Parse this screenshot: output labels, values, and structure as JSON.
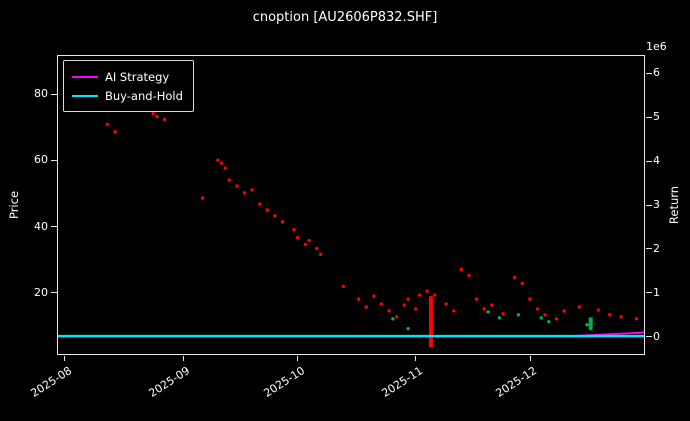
{
  "colors": {
    "background": "#000000",
    "text": "#ffffff",
    "spine": "#e8e8e8",
    "ai_strategy": "#ff00ff",
    "buy_and_hold": "#00e5ff",
    "down_days": "#ff0000",
    "up_days": "#00b050"
  },
  "chart_data": {
    "type": "scatter",
    "title": "cnoption [AU2606P832.SHF]",
    "ylabel_left": "Price",
    "ylabel_right": "Return",
    "grid": false,
    "legend_position": "upper-left",
    "x_domain": [
      "2025-07-30",
      "2025-12-31"
    ],
    "price_axis": {
      "lim": [
        1.2,
        91.8
      ],
      "ticks": [
        20,
        40,
        60,
        80
      ]
    },
    "return_axis": {
      "lim_millions": [
        -0.41,
        6.41
      ],
      "ticks": [
        0,
        1,
        2,
        3,
        4,
        5,
        6
      ],
      "offset_text": "1e6"
    },
    "x_ticks": [
      {
        "date": "2025-08-01",
        "label": "2025-08"
      },
      {
        "date": "2025-09-01",
        "label": "2025-09"
      },
      {
        "date": "2025-10-01",
        "label": "2025-10"
      },
      {
        "date": "2025-11-01",
        "label": "2025-11"
      },
      {
        "date": "2025-12-01",
        "label": "2025-12"
      }
    ],
    "bars": [
      {
        "date": "2025-11-05",
        "from": 3.2,
        "to": 18.8,
        "color": "#ff0000"
      },
      {
        "date": "2025-12-17",
        "from": 8.7,
        "to": 12.3,
        "color": "#00b050"
      }
    ],
    "series": [
      {
        "name": "AI Strategy",
        "type": "line",
        "axis": "return",
        "color": "#ff00ff",
        "points": [
          [
            "2025-07-30",
            0.0
          ],
          [
            "2025-12-12",
            0.0
          ],
          [
            "2025-12-31",
            0.08
          ]
        ]
      },
      {
        "name": "Buy-and-Hold",
        "type": "line",
        "axis": "return",
        "color": "#00e5ff",
        "points": [
          [
            "2025-07-30",
            0.0
          ],
          [
            "2025-12-31",
            0.0
          ]
        ]
      },
      {
        "name": "price-down-days",
        "type": "scatter",
        "axis": "price",
        "color": "#ff0000",
        "points": [
          [
            "2025-08-12",
            71.0
          ],
          [
            "2025-08-14",
            68.8
          ],
          [
            "2025-08-24",
            74.3
          ],
          [
            "2025-08-25",
            73.4
          ],
          [
            "2025-08-27",
            72.5
          ],
          [
            "2025-09-06",
            48.6
          ],
          [
            "2025-09-10",
            60.1
          ],
          [
            "2025-09-11",
            59.2
          ],
          [
            "2025-09-12",
            57.7
          ],
          [
            "2025-09-13",
            54.1
          ],
          [
            "2025-09-15",
            52.3
          ],
          [
            "2025-09-17",
            50.2
          ],
          [
            "2025-09-19",
            51.1
          ],
          [
            "2025-09-21",
            46.8
          ],
          [
            "2025-09-23",
            45.0
          ],
          [
            "2025-09-25",
            43.2
          ],
          [
            "2025-09-27",
            41.4
          ],
          [
            "2025-09-30",
            39.0
          ],
          [
            "2025-10-01",
            36.6
          ],
          [
            "2025-10-03",
            34.5
          ],
          [
            "2025-10-04",
            35.7
          ],
          [
            "2025-10-06",
            33.3
          ],
          [
            "2025-10-07",
            31.5
          ],
          [
            "2025-10-13",
            21.8
          ],
          [
            "2025-10-17",
            17.9
          ],
          [
            "2025-10-19",
            15.5
          ],
          [
            "2025-10-21",
            18.8
          ],
          [
            "2025-10-23",
            16.4
          ],
          [
            "2025-10-25",
            14.3
          ],
          [
            "2025-10-27",
            12.5
          ],
          [
            "2025-10-29",
            16.1
          ],
          [
            "2025-10-30",
            17.9
          ],
          [
            "2025-11-01",
            14.9
          ],
          [
            "2025-11-02",
            19.1
          ],
          [
            "2025-11-04",
            20.3
          ],
          [
            "2025-11-06",
            19.1
          ],
          [
            "2025-11-09",
            16.4
          ],
          [
            "2025-11-11",
            14.3
          ],
          [
            "2025-11-13",
            26.9
          ],
          [
            "2025-11-15",
            25.1
          ],
          [
            "2025-11-17",
            17.9
          ],
          [
            "2025-11-19",
            14.9
          ],
          [
            "2025-11-21",
            16.1
          ],
          [
            "2025-11-24",
            13.4
          ],
          [
            "2025-11-27",
            24.5
          ],
          [
            "2025-11-29",
            22.7
          ],
          [
            "2025-12-01",
            17.9
          ],
          [
            "2025-12-03",
            14.9
          ],
          [
            "2025-12-05",
            13.1
          ],
          [
            "2025-12-08",
            11.9
          ],
          [
            "2025-12-10",
            14.3
          ],
          [
            "2025-12-14",
            15.5
          ],
          [
            "2025-12-19",
            14.6
          ],
          [
            "2025-12-22",
            13.1
          ],
          [
            "2025-12-25",
            12.5
          ],
          [
            "2025-12-29",
            11.9
          ]
        ]
      },
      {
        "name": "price-up-days",
        "type": "scatter",
        "axis": "price",
        "color": "#00b050",
        "points": [
          [
            "2025-10-26",
            11.9
          ],
          [
            "2025-10-30",
            8.9
          ],
          [
            "2025-11-20",
            14.0
          ],
          [
            "2025-11-23",
            12.2
          ],
          [
            "2025-11-28",
            13.1
          ],
          [
            "2025-12-04",
            12.2
          ],
          [
            "2025-12-06",
            11.0
          ],
          [
            "2025-12-16",
            10.1
          ],
          [
            "2025-12-17",
            8.9
          ]
        ]
      }
    ],
    "legend": [
      {
        "label": "AI Strategy"
      },
      {
        "label": "Buy-and-Hold"
      }
    ]
  }
}
